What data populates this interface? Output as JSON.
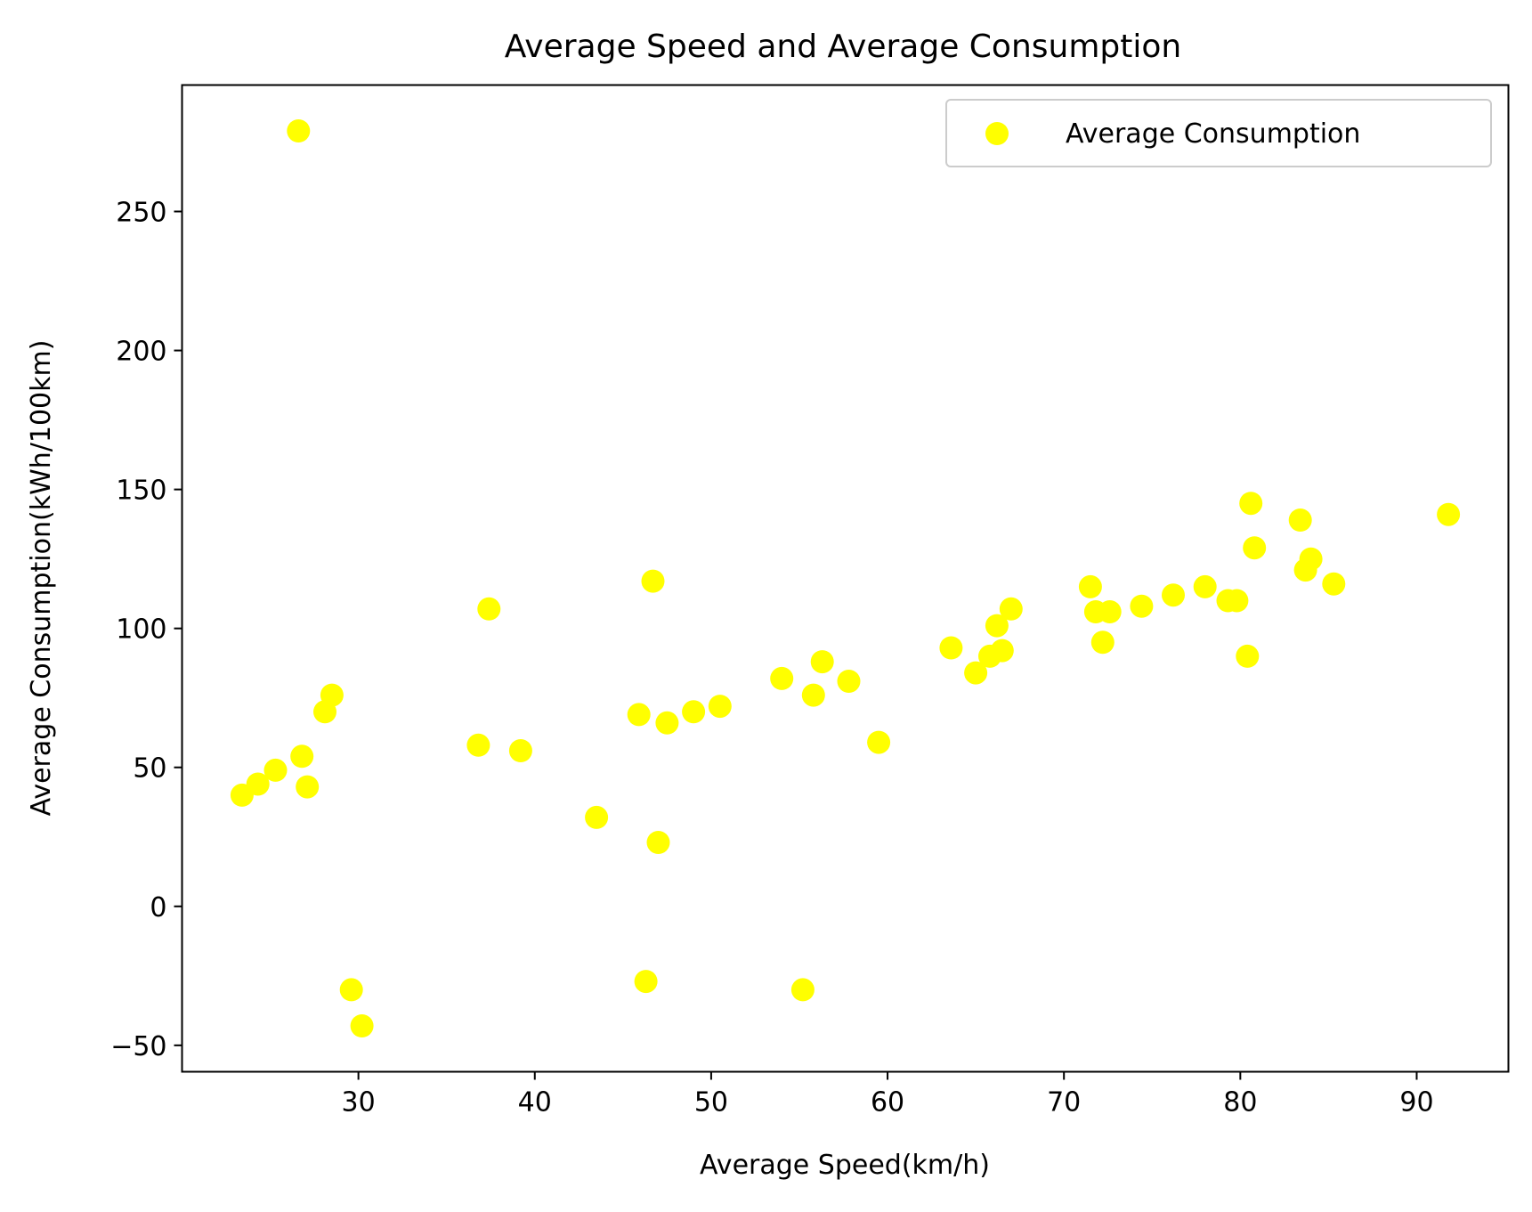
{
  "chart_data": {
    "type": "scatter",
    "title": "Average Speed and Average Consumption",
    "xlabel": "Average Speed(km/h)",
    "ylabel": "Average Consumption(kWh/100km)",
    "xlim": [
      20.0,
      95.2
    ],
    "ylim": [
      -59.5,
      295.5
    ],
    "xticks": [
      30,
      40,
      50,
      60,
      70,
      80,
      90
    ],
    "yticks": [
      -50,
      0,
      50,
      100,
      150,
      200,
      250
    ],
    "xtick_labels": [
      "30",
      "40",
      "50",
      "60",
      "70",
      "80",
      "90"
    ],
    "ytick_labels": [
      "−50",
      "0",
      "50",
      "100",
      "150",
      "200",
      "250"
    ],
    "grid": false,
    "legend": {
      "position": "top-right",
      "entries": [
        "Average Consumption"
      ]
    },
    "series": [
      {
        "name": "Average Consumption",
        "color": "#ffff00",
        "marker": "circle",
        "x": [
          23.4,
          24.3,
          25.3,
          26.6,
          26.8,
          27.1,
          28.1,
          28.5,
          29.6,
          30.2,
          36.8,
          37.4,
          39.2,
          43.5,
          45.9,
          46.3,
          46.7,
          47.0,
          47.5,
          49.0,
          50.5,
          54.0,
          55.2,
          55.8,
          56.3,
          57.8,
          59.5,
          63.6,
          65.0,
          65.8,
          66.2,
          66.5,
          67.0,
          71.5,
          71.8,
          72.2,
          72.6,
          74.4,
          76.2,
          78.0,
          79.3,
          79.8,
          80.4,
          80.6,
          80.8,
          83.4,
          83.7,
          84.0,
          85.3,
          91.8
        ],
        "y": [
          40,
          44,
          49,
          279,
          54,
          43,
          70,
          76,
          -30,
          -43,
          58,
          107,
          56,
          32,
          69,
          -27,
          117,
          23,
          66,
          70,
          72,
          82,
          -30,
          76,
          88,
          81,
          59,
          93,
          84,
          90,
          101,
          92,
          107,
          115,
          106,
          95,
          106,
          108,
          112,
          115,
          110,
          110,
          90,
          145,
          129,
          139,
          121,
          125,
          116,
          141
        ]
      }
    ]
  }
}
